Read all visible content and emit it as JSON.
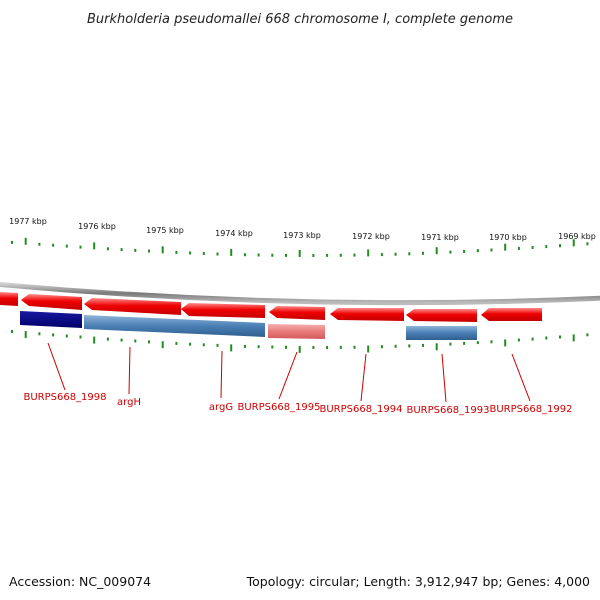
{
  "title": "Burkholderia pseudomallei 668 chromosome I, complete genome",
  "footer": {
    "accession": "Accession: NC_009074",
    "topology": "Topology: circular; Length: 3,912,947 bp; Genes: 4,000"
  },
  "ticks": [
    {
      "label": "1977 kbp"
    },
    {
      "label": "1976 kbp"
    },
    {
      "label": "1975 kbp"
    },
    {
      "label": "1974 kbp"
    },
    {
      "label": "1973 kbp"
    },
    {
      "label": "1972 kbp"
    },
    {
      "label": "1971 kbp"
    },
    {
      "label": "1970 kbp"
    },
    {
      "label": "1969 kbp"
    }
  ],
  "gene_labels": [
    {
      "text": "BURPS668_1998"
    },
    {
      "text": "argH"
    },
    {
      "text": "argG"
    },
    {
      "text": "BURPS668_1995"
    },
    {
      "text": "BURPS668_1994"
    },
    {
      "text": "BURPS668_1993"
    },
    {
      "text": "BURPS668_1992"
    }
  ],
  "colors": {
    "forward_strand": "#ee0000",
    "reverse_gene_dark": "#000080",
    "reverse_gene_light": "#4a7fb5",
    "pink_gene": "#e87a7a",
    "backbone": "#888888",
    "ticks": "#228b22",
    "label": "#cc0000"
  }
}
